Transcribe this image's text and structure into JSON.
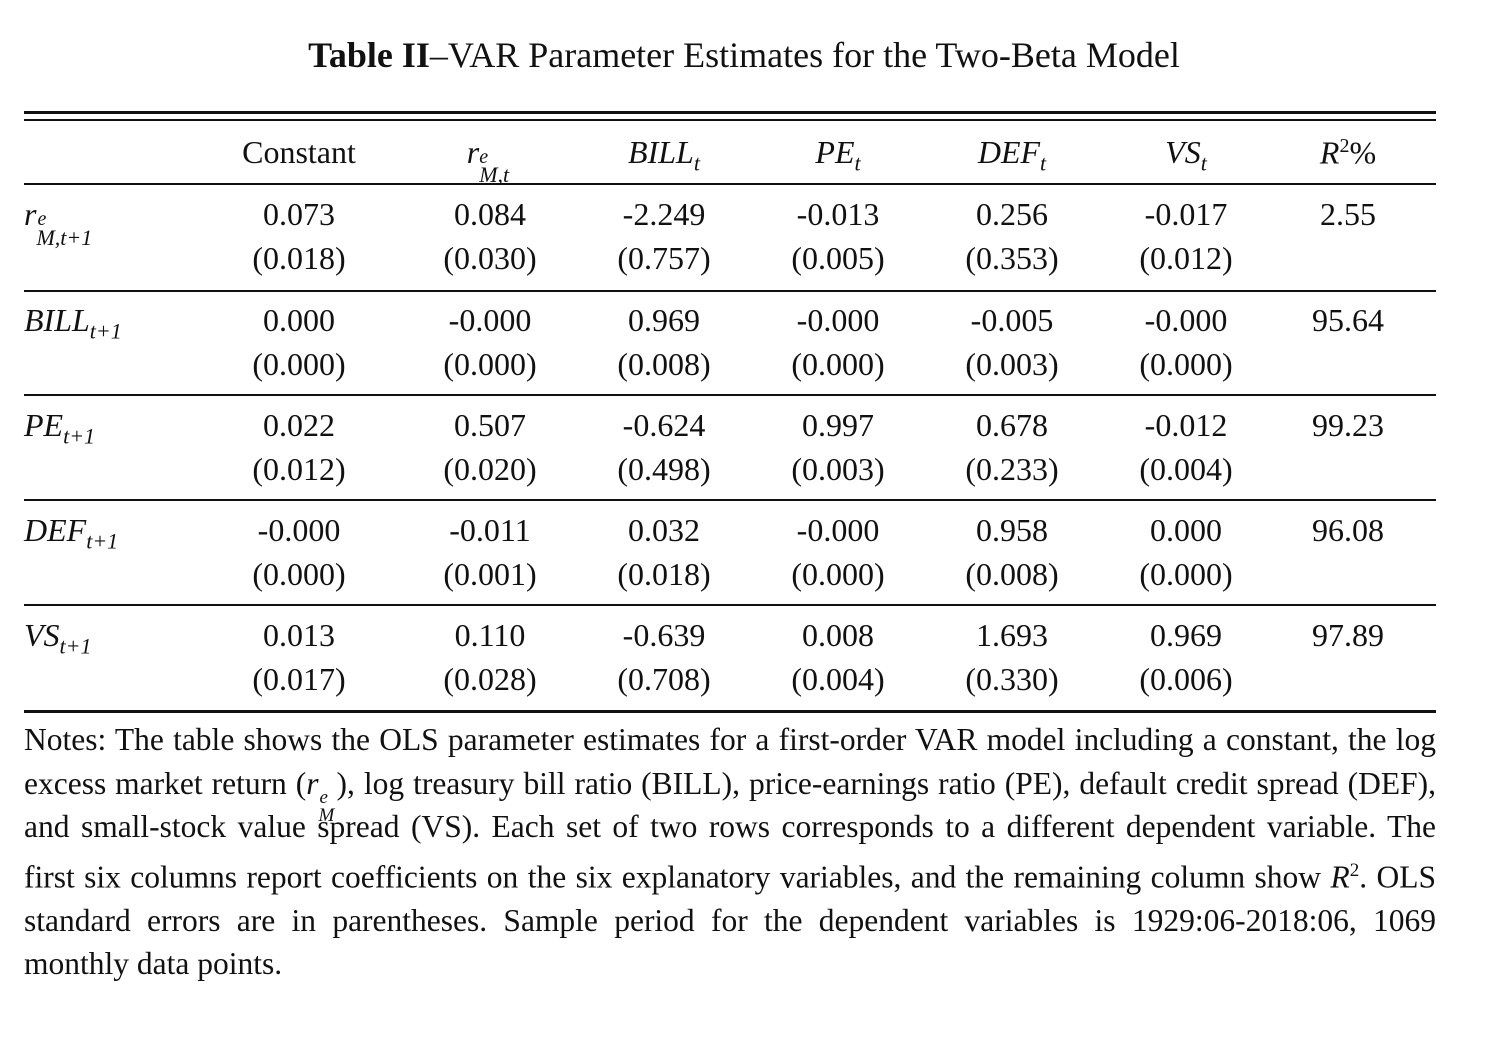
{
  "table": {
    "title_bold": "Table II",
    "title_rest": "–VAR Parameter Estimates for the Two-Beta Model",
    "headers": {
      "constant": "Constant",
      "r_main": "r",
      "r_sup": "e",
      "r_sub": "M,t",
      "bill_main": "BILL",
      "bill_sub": "t",
      "pe_main": "PE",
      "pe_sub": "t",
      "def_main": "DEF",
      "def_sub": "t",
      "vs_main": "VS",
      "vs_sub": "t",
      "r2_main": "R",
      "r2_sup": "2",
      "r2_pct": "%"
    },
    "rows": [
      {
        "label_main": "r",
        "label_sup": "e",
        "label_sub": "M,t+1",
        "coef": [
          "0.073",
          "0.084",
          "-2.249",
          "-0.013",
          "0.256",
          "-0.017"
        ],
        "se": [
          "(0.018)",
          "(0.030)",
          "(0.757)",
          "(0.005)",
          "(0.353)",
          "(0.012)"
        ],
        "r2": "2.55"
      },
      {
        "label_main": "BILL",
        "label_sup": "",
        "label_sub": "t+1",
        "coef": [
          "0.000",
          "-0.000",
          "0.969",
          "-0.000",
          "-0.005",
          "-0.000"
        ],
        "se": [
          "(0.000)",
          "(0.000)",
          "(0.008)",
          "(0.000)",
          "(0.003)",
          "(0.000)"
        ],
        "r2": "95.64"
      },
      {
        "label_main": "PE",
        "label_sup": "",
        "label_sub": "t+1",
        "coef": [
          "0.022",
          "0.507",
          "-0.624",
          "0.997",
          "0.678",
          "-0.012"
        ],
        "se": [
          "(0.012)",
          "(0.020)",
          "(0.498)",
          "(0.003)",
          "(0.233)",
          "(0.004)"
        ],
        "r2": "99.23"
      },
      {
        "label_main": "DEF",
        "label_sup": "",
        "label_sub": "t+1",
        "coef": [
          "-0.000",
          "-0.011",
          "0.032",
          "-0.000",
          "0.958",
          "0.000"
        ],
        "se": [
          "(0.000)",
          "(0.001)",
          "(0.018)",
          "(0.000)",
          "(0.008)",
          "(0.000)"
        ],
        "r2": "96.08"
      },
      {
        "label_main": "VS",
        "label_sup": "",
        "label_sub": "t+1",
        "coef": [
          "0.013",
          "0.110",
          "-0.639",
          "0.008",
          "1.693",
          "0.969"
        ],
        "se": [
          "(0.017)",
          "(0.028)",
          "(0.708)",
          "(0.004)",
          "(0.330)",
          "(0.006)"
        ],
        "r2": "97.89"
      }
    ],
    "notes": {
      "part1": "Notes: The table shows the OLS parameter estimates for a first-order VAR model including a constant, the log excess market return (",
      "rm_main": "r",
      "rm_sup": "e",
      "rm_sub": "M",
      "part2": "), log treasury bill ratio (BILL), price-earnings ratio (PE), default credit spread (DEF), and small-stock value spread (VS). Each set of two rows corresponds to a different dependent variable. The first six columns report coefficients on the six explanatory variables, and the remaining column show ",
      "r2_main": "R",
      "r2_sup": "2",
      "part3": ". OLS standard errors are in parentheses. Sample period for the dependent variables is 1929:06-2018:06, 1069 monthly data points."
    }
  }
}
